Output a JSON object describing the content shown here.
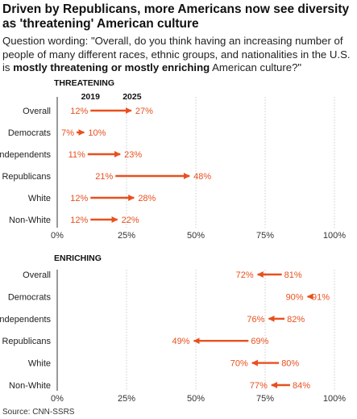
{
  "title": "Driven by Republicans, more Americans now see diversity as 'threatening' American culture",
  "subtitle": {
    "pre": "Question wording: \"Overall, do you think having an increasing number of people of many different races, ethnic groups, and nationalities in the U.S. is ",
    "bold": "mostly threatening or mostly enriching",
    "post": " American culture?\""
  },
  "source": "Source: CNN-SSRS",
  "colors": {
    "accent": "#e8501e",
    "grid": "#cccccc",
    "axis": "#333333",
    "text": "#222222"
  },
  "chart_data": [
    {
      "type": "dot-arrow",
      "title": "THREATENING",
      "legend": [
        "2019",
        "2025"
      ],
      "xlim": [
        0,
        100
      ],
      "ticks": [
        "0%",
        "25%",
        "50%",
        "75%",
        "100%"
      ],
      "categories": [
        "Overall",
        "Democrats",
        "Independents",
        "Republicans",
        "White",
        "Non-White"
      ],
      "series": [
        {
          "name": "2019",
          "values": [
            12,
            7,
            11,
            21,
            12,
            12
          ]
        },
        {
          "name": "2025",
          "values": [
            27,
            10,
            23,
            48,
            28,
            22
          ]
        }
      ]
    },
    {
      "type": "dot-arrow",
      "title": "ENRICHING",
      "xlim": [
        0,
        100
      ],
      "ticks": [
        "0%",
        "25%",
        "50%",
        "75%",
        "100%"
      ],
      "categories": [
        "Overall",
        "Democrats",
        "Independents",
        "Republicans",
        "White",
        "Non-White"
      ],
      "series": [
        {
          "name": "2019",
          "values": [
            81,
            91,
            82,
            69,
            80,
            84
          ]
        },
        {
          "name": "2025",
          "values": [
            72,
            90,
            76,
            49,
            70,
            77
          ]
        }
      ]
    }
  ]
}
